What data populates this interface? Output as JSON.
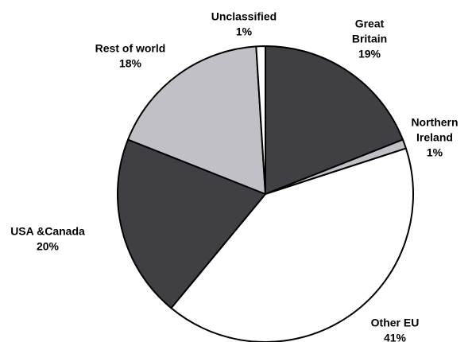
{
  "chart_data": {
    "type": "pie",
    "title": "",
    "slices": [
      {
        "label_lines": [
          "Great",
          "Britain"
        ],
        "value": 19,
        "value_label": "19%",
        "color": "#404044"
      },
      {
        "label_lines": [
          "Northern",
          "Ireland"
        ],
        "value": 1,
        "value_label": "1%",
        "color": "#c0c0c6"
      },
      {
        "label_lines": [
          "Other EU"
        ],
        "value": 41,
        "value_label": "41%",
        "color": "#ffffff"
      },
      {
        "label_lines": [
          "USA &Canada"
        ],
        "value": 20,
        "value_label": "20%",
        "color": "#404044"
      },
      {
        "label_lines": [
          "Rest of world"
        ],
        "value": 18,
        "value_label": "18%",
        "color": "#c0c0c6"
      },
      {
        "label_lines": [
          "Unclassified"
        ],
        "value": 1,
        "value_label": "1%",
        "color": "#ffffff"
      }
    ],
    "legend": "none",
    "start_angle": "12 o'clock",
    "direction": "clockwise",
    "edge_color": "#000000"
  }
}
